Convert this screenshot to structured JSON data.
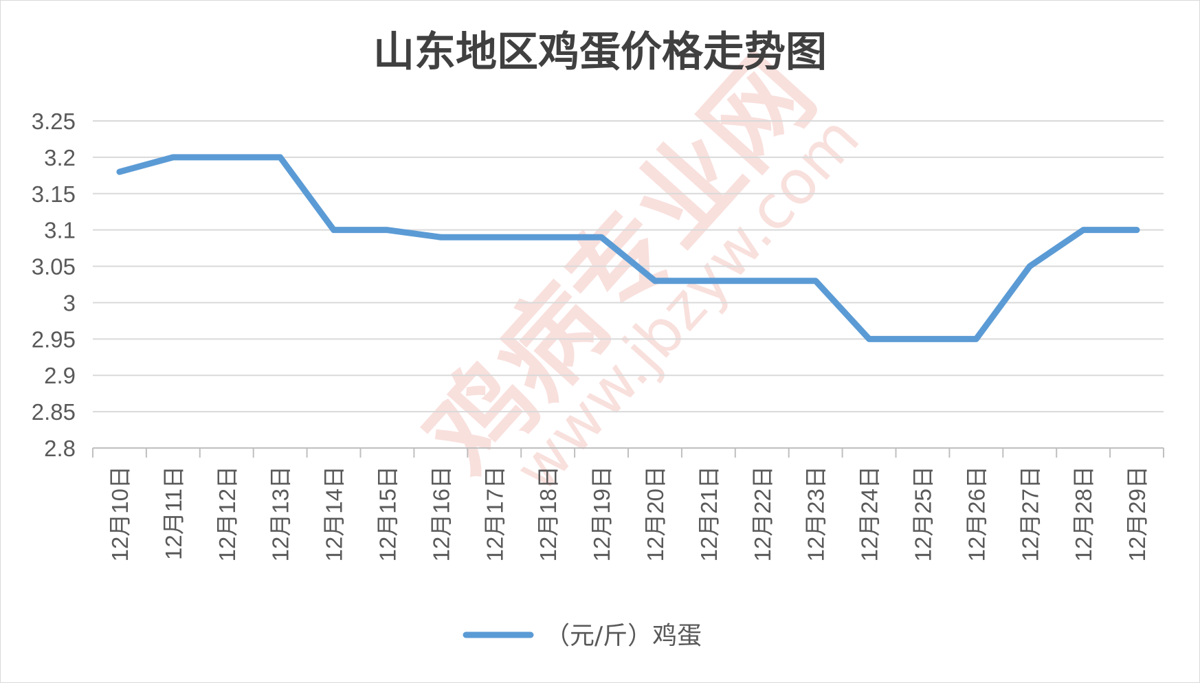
{
  "chart_data": {
    "type": "line",
    "title": "山东地区鸡蛋价格走势图",
    "categories": [
      "12月10日",
      "12月11日",
      "12月12日",
      "12月13日",
      "12月14日",
      "12月15日",
      "12月16日",
      "12月17日",
      "12月18日",
      "12月19日",
      "12月20日",
      "12月21日",
      "12月22日",
      "12月23日",
      "12月24日",
      "12月25日",
      "12月26日",
      "12月27日",
      "12月28日",
      "12月29日"
    ],
    "series": [
      {
        "name": "（元/斤）鸡蛋",
        "color": "#5b9bd5",
        "values": [
          3.18,
          3.2,
          3.2,
          3.2,
          3.1,
          3.1,
          3.09,
          3.09,
          3.09,
          3.09,
          3.03,
          3.03,
          3.03,
          3.03,
          2.95,
          2.95,
          2.95,
          3.05,
          3.1,
          3.1
        ]
      }
    ],
    "ylim": [
      2.8,
      3.25
    ],
    "yticks": [
      "2.8",
      "2.85",
      "2.9",
      "2.95",
      "3",
      "3.05",
      "3.1",
      "3.15",
      "3.2",
      "3.25"
    ],
    "grid": true,
    "legend": "bottom"
  },
  "watermark": {
    "name": "鸡病专业网",
    "url": "www.jbzyw.com",
    "color": "#f4c7c3"
  }
}
